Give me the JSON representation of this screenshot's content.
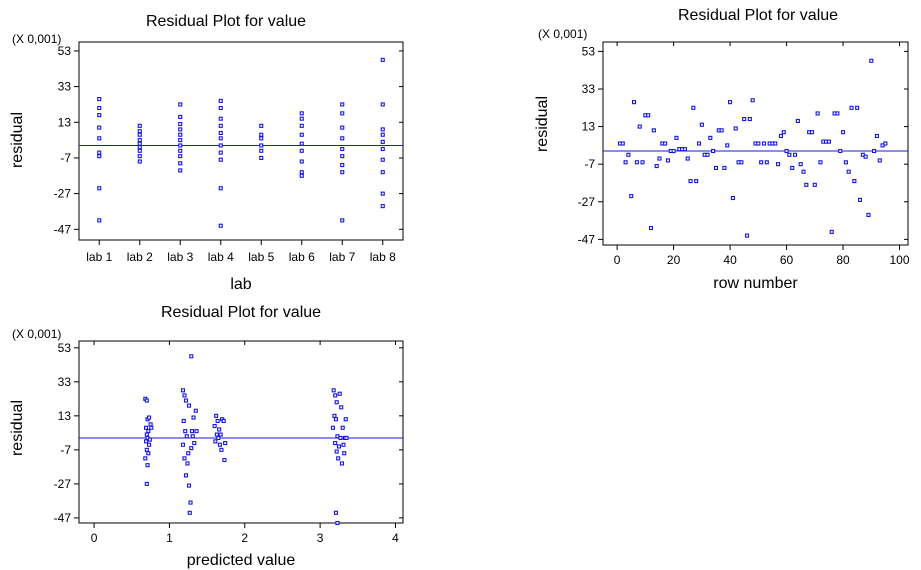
{
  "chart_data": [
    {
      "id": "lab",
      "type": "scatter",
      "title": "Residual Plot for value",
      "xlabel": "lab",
      "ylabel": "residual",
      "y_scale_note": "(X 0,001)",
      "x_categories": [
        "lab 1",
        "lab 2",
        "lab 3",
        "lab 4",
        "lab 5",
        "lab 6",
        "lab 7",
        "lab 8"
      ],
      "xlim": [
        0.5,
        8.5
      ],
      "ylim": [
        -53,
        58
      ],
      "yticks": [
        53,
        33,
        13,
        -7,
        -27,
        -47
      ],
      "ytick_labels": [
        "53",
        "33",
        "13",
        "-7",
        "-27",
        "-47"
      ],
      "reference_line_y": 0,
      "points": [
        [
          1,
          26
        ],
        [
          1,
          21
        ],
        [
          1,
          17
        ],
        [
          1,
          10
        ],
        [
          1,
          4
        ],
        [
          1,
          -4
        ],
        [
          1,
          -6
        ],
        [
          1,
          -24
        ],
        [
          1,
          -42
        ],
        [
          2,
          11
        ],
        [
          2,
          8
        ],
        [
          2,
          6
        ],
        [
          2,
          3
        ],
        [
          2,
          1
        ],
        [
          2,
          -1
        ],
        [
          2,
          -3
        ],
        [
          2,
          -6
        ],
        [
          2,
          -9
        ],
        [
          3,
          23
        ],
        [
          3,
          16
        ],
        [
          3,
          12
        ],
        [
          3,
          9
        ],
        [
          3,
          6
        ],
        [
          3,
          3
        ],
        [
          3,
          0
        ],
        [
          3,
          -3
        ],
        [
          3,
          -6
        ],
        [
          3,
          -10
        ],
        [
          3,
          -14
        ],
        [
          4,
          25
        ],
        [
          4,
          21
        ],
        [
          4,
          15
        ],
        [
          4,
          11
        ],
        [
          4,
          7
        ],
        [
          4,
          4
        ],
        [
          4,
          0
        ],
        [
          4,
          -4
        ],
        [
          4,
          -8
        ],
        [
          4,
          -24
        ],
        [
          4,
          -45
        ],
        [
          5,
          11
        ],
        [
          5,
          6
        ],
        [
          5,
          4
        ],
        [
          5,
          0
        ],
        [
          5,
          -3
        ],
        [
          5,
          -7
        ],
        [
          6,
          18
        ],
        [
          6,
          15
        ],
        [
          6,
          11
        ],
        [
          6,
          6
        ],
        [
          6,
          1
        ],
        [
          6,
          -3
        ],
        [
          6,
          -9
        ],
        [
          6,
          -15
        ],
        [
          6,
          -17
        ],
        [
          7,
          23
        ],
        [
          7,
          18
        ],
        [
          7,
          10
        ],
        [
          7,
          4
        ],
        [
          7,
          -2
        ],
        [
          7,
          -6
        ],
        [
          7,
          -11
        ],
        [
          7,
          -15
        ],
        [
          7,
          -42
        ],
        [
          8,
          48
        ],
        [
          8,
          23
        ],
        [
          8,
          9
        ],
        [
          8,
          6
        ],
        [
          8,
          2
        ],
        [
          8,
          -2
        ],
        [
          8,
          -8
        ],
        [
          8,
          -15
        ],
        [
          8,
          -27
        ],
        [
          8,
          -34
        ]
      ]
    },
    {
      "id": "row",
      "type": "scatter",
      "title": "Residual Plot for value",
      "xlabel": "row number",
      "ylabel": "residual",
      "y_scale_note": "(X 0,001)",
      "xlim": [
        -5,
        103
      ],
      "xticks": [
        0,
        20,
        40,
        60,
        80,
        100
      ],
      "ylim": [
        -50,
        58
      ],
      "yticks": [
        53,
        33,
        13,
        -7,
        -27,
        -47
      ],
      "ytick_labels": [
        "53",
        "33",
        "13",
        "-7",
        "-27",
        "-47"
      ],
      "reference_line_y": 0,
      "points": [
        [
          1,
          4
        ],
        [
          2,
          4
        ],
        [
          3,
          -6
        ],
        [
          4,
          -2
        ],
        [
          5,
          -24
        ],
        [
          6,
          26
        ],
        [
          7,
          -6
        ],
        [
          8,
          13
        ],
        [
          9,
          -6
        ],
        [
          10,
          19
        ],
        [
          11,
          19
        ],
        [
          12,
          -41
        ],
        [
          13,
          11
        ],
        [
          14,
          -8
        ],
        [
          15,
          -4
        ],
        [
          16,
          4
        ],
        [
          17,
          4
        ],
        [
          18,
          -5
        ],
        [
          19,
          0
        ],
        [
          20,
          0
        ],
        [
          21,
          7
        ],
        [
          22,
          1
        ],
        [
          23,
          1
        ],
        [
          24,
          1
        ],
        [
          25,
          -4
        ],
        [
          26,
          -16
        ],
        [
          27,
          23
        ],
        [
          28,
          -16
        ],
        [
          29,
          4
        ],
        [
          30,
          14
        ],
        [
          31,
          -2
        ],
        [
          32,
          -2
        ],
        [
          33,
          7
        ],
        [
          34,
          0
        ],
        [
          35,
          -9
        ],
        [
          36,
          11
        ],
        [
          37,
          11
        ],
        [
          38,
          -9
        ],
        [
          39,
          3
        ],
        [
          40,
          26
        ],
        [
          41,
          -25
        ],
        [
          42,
          12
        ],
        [
          43,
          -6
        ],
        [
          44,
          -6
        ],
        [
          45,
          17
        ],
        [
          46,
          -45
        ],
        [
          47,
          17
        ],
        [
          48,
          27
        ],
        [
          49,
          4
        ],
        [
          50,
          4
        ],
        [
          51,
          -6
        ],
        [
          52,
          4
        ],
        [
          53,
          -6
        ],
        [
          54,
          4
        ],
        [
          55,
          4
        ],
        [
          56,
          4
        ],
        [
          57,
          -7
        ],
        [
          58,
          8
        ],
        [
          59,
          10
        ],
        [
          60,
          0
        ],
        [
          61,
          -2
        ],
        [
          62,
          -9
        ],
        [
          63,
          -2
        ],
        [
          64,
          16
        ],
        [
          65,
          -7
        ],
        [
          66,
          -11
        ],
        [
          67,
          -18
        ],
        [
          68,
          10
        ],
        [
          69,
          10
        ],
        [
          70,
          -18
        ],
        [
          71,
          20
        ],
        [
          72,
          -6
        ],
        [
          73,
          5
        ],
        [
          74,
          5
        ],
        [
          75,
          5
        ],
        [
          76,
          -43
        ],
        [
          77,
          20
        ],
        [
          78,
          20
        ],
        [
          79,
          0
        ],
        [
          80,
          10
        ],
        [
          81,
          -6
        ],
        [
          82,
          -11
        ],
        [
          83,
          23
        ],
        [
          84,
          -16
        ],
        [
          85,
          23
        ],
        [
          86,
          -26
        ],
        [
          87,
          -2
        ],
        [
          88,
          -3
        ],
        [
          89,
          -34
        ],
        [
          90,
          48
        ],
        [
          91,
          0
        ],
        [
          92,
          8
        ],
        [
          93,
          -5
        ],
        [
          94,
          3
        ],
        [
          95,
          4
        ]
      ]
    },
    {
      "id": "pred",
      "type": "scatter",
      "title": "Residual Plot for value",
      "xlabel": "predicted value",
      "ylabel": "residual",
      "y_scale_note": "(X 0,001)",
      "xlim": [
        -0.2,
        4.1
      ],
      "xticks": [
        0,
        1,
        2,
        3,
        4
      ],
      "ylim": [
        -50,
        57
      ],
      "yticks": [
        53,
        33,
        13,
        -7,
        -27,
        -47
      ],
      "ytick_labels": [
        "53",
        "33",
        "13",
        "-7",
        "-27",
        "-47"
      ],
      "reference_line_y": 0,
      "points": [
        [
          0.68,
          23
        ],
        [
          0.7,
          22
        ],
        [
          0.71,
          11
        ],
        [
          0.69,
          6
        ],
        [
          0.72,
          4
        ],
        [
          0.7,
          2
        ],
        [
          0.71,
          0
        ],
        [
          0.69,
          -2
        ],
        [
          0.73,
          -4
        ],
        [
          0.7,
          -7
        ],
        [
          0.72,
          -9
        ],
        [
          0.68,
          -12
        ],
        [
          0.71,
          -16
        ],
        [
          0.7,
          -27
        ],
        [
          0.75,
          8
        ],
        [
          0.74,
          -1
        ],
        [
          0.76,
          6
        ],
        [
          0.73,
          12
        ],
        [
          1.18,
          28
        ],
        [
          1.2,
          25
        ],
        [
          1.22,
          22
        ],
        [
          1.19,
          10
        ],
        [
          1.21,
          4
        ],
        [
          1.23,
          1
        ],
        [
          1.18,
          -4
        ],
        [
          1.25,
          -9
        ],
        [
          1.2,
          -12
        ],
        [
          1.24,
          -15
        ],
        [
          1.22,
          -22
        ],
        [
          1.26,
          -28
        ],
        [
          1.28,
          -38
        ],
        [
          1.27,
          -44
        ],
        [
          1.29,
          48
        ],
        [
          1.3,
          4
        ],
        [
          1.35,
          16
        ],
        [
          1.32,
          12
        ],
        [
          1.31,
          1
        ],
        [
          1.33,
          -3
        ],
        [
          1.29,
          -6
        ],
        [
          1.36,
          4
        ],
        [
          1.26,
          19
        ],
        [
          1.62,
          13
        ],
        [
          1.64,
          10
        ],
        [
          1.6,
          7
        ],
        [
          1.66,
          5
        ],
        [
          1.63,
          2
        ],
        [
          1.65,
          0
        ],
        [
          1.61,
          -2
        ],
        [
          1.67,
          -4
        ],
        [
          1.7,
          11
        ],
        [
          1.72,
          10
        ],
        [
          1.68,
          2
        ],
        [
          1.69,
          -7
        ],
        [
          1.73,
          -13
        ],
        [
          1.74,
          -3
        ],
        [
          3.18,
          28
        ],
        [
          3.2,
          25
        ],
        [
          3.22,
          21
        ],
        [
          3.19,
          13
        ],
        [
          3.21,
          11
        ],
        [
          3.17,
          6
        ],
        [
          3.23,
          1
        ],
        [
          3.2,
          -3
        ],
        [
          3.22,
          -8
        ],
        [
          3.24,
          -12
        ],
        [
          3.26,
          26
        ],
        [
          3.28,
          18
        ],
        [
          3.3,
          6
        ],
        [
          3.27,
          0
        ],
        [
          3.25,
          -5
        ],
        [
          3.29,
          -15
        ],
        [
          3.31,
          -4
        ],
        [
          3.33,
          0
        ],
        [
          3.35,
          0
        ],
        [
          3.34,
          11
        ],
        [
          3.32,
          -9
        ],
        [
          3.21,
          -44
        ],
        [
          3.23,
          -50
        ]
      ]
    }
  ]
}
